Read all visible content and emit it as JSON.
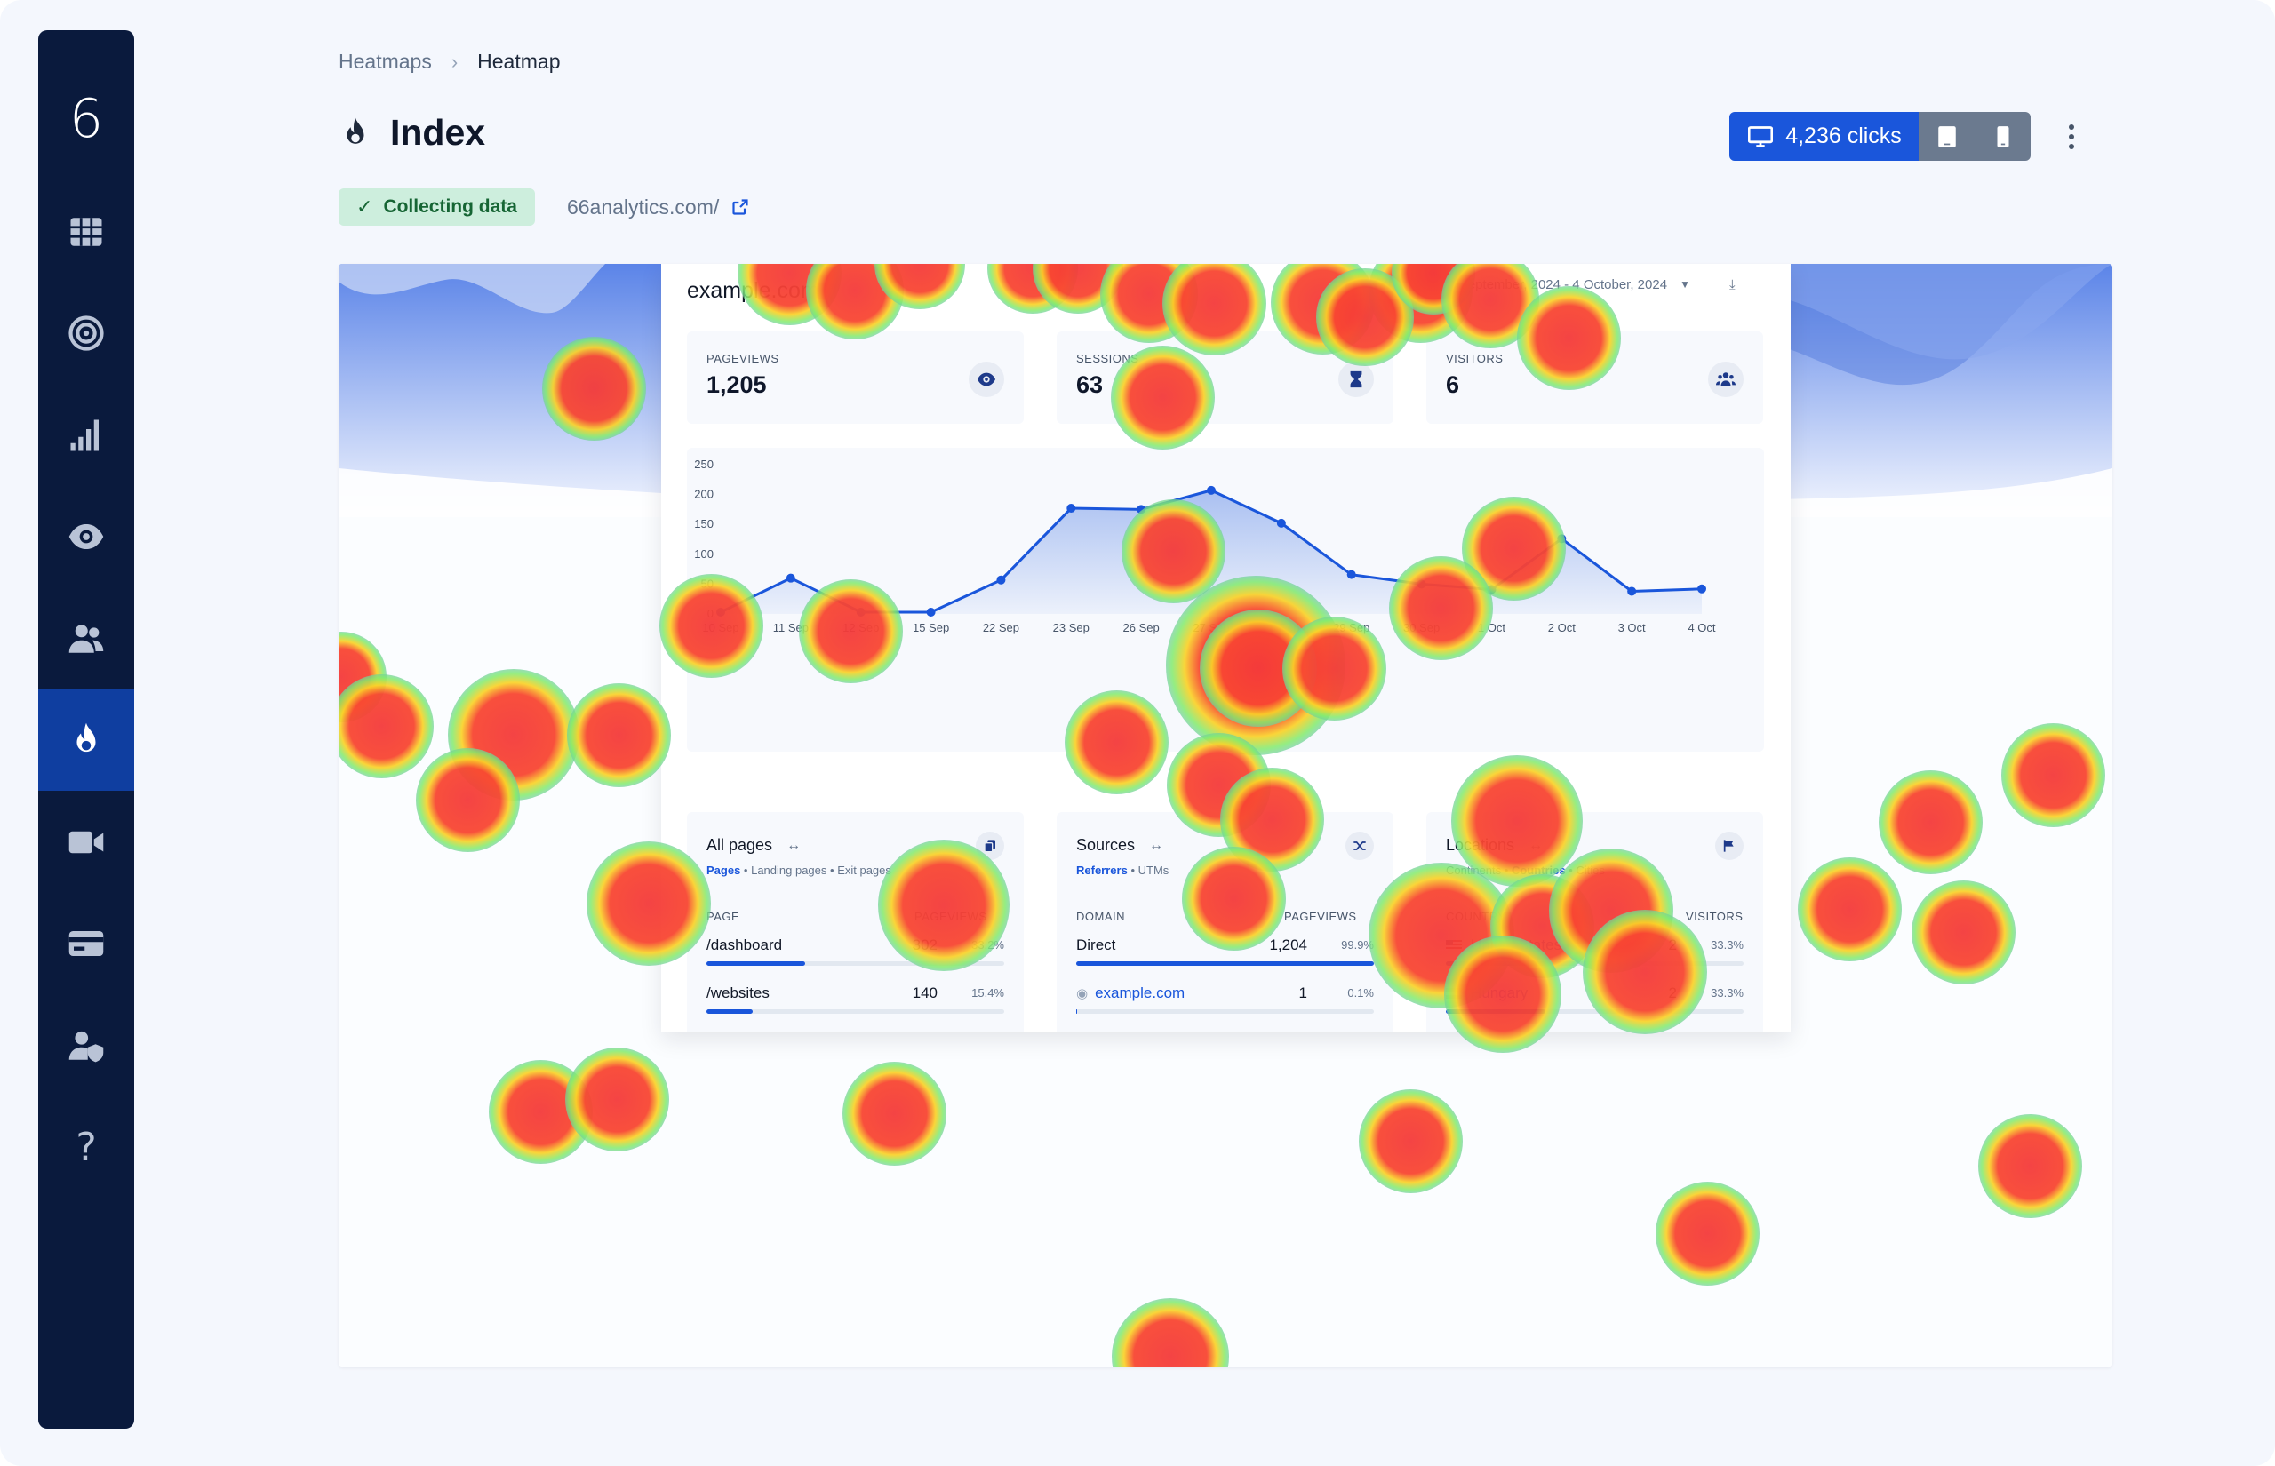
{
  "app": {
    "logo": "6"
  },
  "sidebar": {
    "items": [
      {
        "name": "grid-icon"
      },
      {
        "name": "target-icon"
      },
      {
        "name": "signal-icon"
      },
      {
        "name": "eye-icon"
      },
      {
        "name": "users-icon"
      },
      {
        "name": "flame-icon",
        "active": true
      },
      {
        "name": "video-icon"
      },
      {
        "name": "card-icon"
      },
      {
        "name": "user-shield-icon"
      },
      {
        "name": "help-icon",
        "label": "?"
      }
    ]
  },
  "breadcrumb": {
    "parent": "Heatmaps",
    "separator": "›",
    "current": "Heatmap"
  },
  "page": {
    "title": "Index",
    "status": "Collecting data",
    "url": "66analytics.com/"
  },
  "devices": {
    "desktop_label": "4,236 clicks",
    "active": "desktop"
  },
  "colors": {
    "accent": "#1a56db",
    "sidebar": "#0a1a3d",
    "status_bg": "#cdeedd",
    "status_text": "#166534"
  },
  "dashboard": {
    "site": "example.com",
    "date_range": "4 September, 2024 - 4 October, 2024",
    "stats": [
      {
        "label": "PAGEVIEWS",
        "value": "1,205",
        "icon": "eye-icon"
      },
      {
        "label": "SESSIONS",
        "value": "63",
        "icon": "hourglass-icon"
      },
      {
        "label": "VISITORS",
        "value": "6",
        "icon": "users-icon"
      }
    ],
    "pages": {
      "title": "All pages",
      "tabs": [
        "Pages",
        "Landing pages",
        "Exit pages"
      ],
      "col_key": "PAGE",
      "col_val": "PAGEVIEWS",
      "rows": [
        {
          "key": "/dashboard",
          "value": "302",
          "pct": "33.2%",
          "fill": 0.332
        },
        {
          "key": "/websites",
          "value": "140",
          "pct": "15.4%",
          "fill": 0.154
        }
      ]
    },
    "sources": {
      "title": "Sources",
      "tabs": [
        "Referrers",
        "UTMs"
      ],
      "col_key": "DOMAIN",
      "col_val": "PAGEVIEWS",
      "rows": [
        {
          "key": "Direct",
          "value": "1,204",
          "pct": "99.9%",
          "fill": 0.999
        },
        {
          "key": "example.com",
          "value": "1",
          "pct": "0.1%",
          "fill": 0.001
        }
      ]
    },
    "locations": {
      "title": "Locations",
      "tabs": [
        "Continents",
        "Countries",
        "Cities"
      ],
      "col_key": "COUNTRY",
      "col_val": "VISITORS",
      "rows": [
        {
          "key": "United States",
          "value": "2",
          "pct": "33.3%",
          "fill": 0.333
        },
        {
          "key": "Hungary",
          "value": "2",
          "pct": "33.3%",
          "fill": 0.333
        }
      ]
    }
  },
  "chart_data": {
    "type": "area",
    "title": "",
    "xlabel": "",
    "ylabel": "",
    "categories": [
      "10 Sep",
      "11 Sep",
      "12 Sep",
      "15 Sep",
      "22 Sep",
      "23 Sep",
      "26 Sep",
      "27 Sep",
      "28 Sep",
      "29 Sep",
      "30 Sep",
      "1 Oct",
      "2 Oct",
      "3 Oct",
      "4 Oct"
    ],
    "values": [
      3,
      60,
      3,
      3,
      57,
      177,
      175,
      207,
      152,
      66,
      50,
      41,
      126,
      38,
      42
    ],
    "yticks": [
      0,
      50,
      100,
      150,
      200,
      250
    ],
    "ylim": [
      0,
      250
    ],
    "grid": false
  }
}
